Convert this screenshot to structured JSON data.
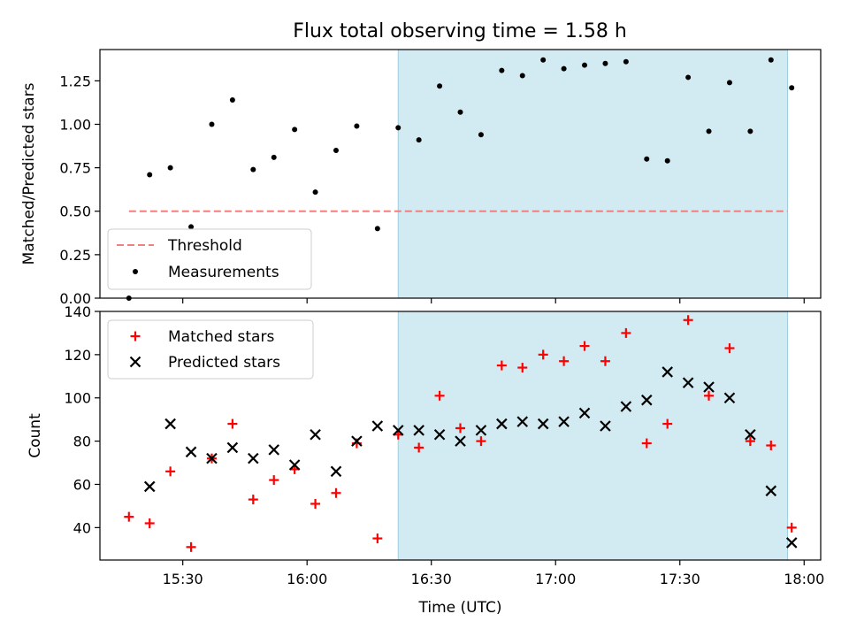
{
  "chart_data": {
    "title": "Flux total observing time = 1.58 h",
    "shaded_region": {
      "x_start": "16:22",
      "x_end": "17:56",
      "color": "#add8e6"
    },
    "x_axis": {
      "label": "Time (UTC)",
      "range": [
        "15:10",
        "18:04"
      ],
      "ticks": [
        "15:30",
        "16:00",
        "16:30",
        "17:00",
        "17:30",
        "18:00"
      ]
    },
    "panels": [
      {
        "type": "scatter",
        "ylabel": "Matched/Predicted stars",
        "ylim": [
          0,
          1.43
        ],
        "yticks": [
          "0.00",
          "0.25",
          "0.50",
          "0.75",
          "1.00",
          "1.25"
        ],
        "legend_position": "lower-left",
        "threshold": {
          "name": "Threshold",
          "value": 0.5,
          "x_start": "15:17",
          "x_end": "17:56",
          "color": "#f08080",
          "style": "dashed"
        },
        "series": [
          {
            "name": "Measurements",
            "color": "#000000",
            "marker": "dot",
            "x": [
              "15:17",
              "15:22",
              "15:27",
              "15:32",
              "15:37",
              "15:42",
              "15:47",
              "15:52",
              "15:57",
              "16:02",
              "16:07",
              "16:12",
              "16:17",
              "16:22",
              "16:27",
              "16:32",
              "16:37",
              "16:42",
              "16:47",
              "16:52",
              "16:57",
              "17:02",
              "17:07",
              "17:12",
              "17:17",
              "17:22",
              "17:27",
              "17:32",
              "17:37",
              "17:42",
              "17:47",
              "17:52",
              "17:57"
            ],
            "y": [
              0.0,
              0.71,
              0.75,
              0.41,
              1.0,
              1.14,
              0.74,
              0.81,
              0.97,
              0.61,
              0.85,
              0.99,
              0.4,
              0.98,
              0.91,
              1.22,
              1.07,
              0.94,
              1.31,
              1.28,
              1.37,
              1.32,
              1.34,
              1.35,
              1.36,
              0.8,
              0.79,
              1.27,
              0.96,
              1.24,
              0.96,
              1.37,
              1.21
            ]
          }
        ]
      },
      {
        "type": "scatter",
        "ylabel": "Count",
        "ylim": [
          25,
          140
        ],
        "yticks": [
          "40",
          "60",
          "80",
          "100",
          "120",
          "140"
        ],
        "legend_position": "upper-left",
        "series": [
          {
            "name": "Matched stars",
            "color": "#ff0000",
            "marker": "plus",
            "x": [
              "15:17",
              "15:22",
              "15:27",
              "15:32",
              "15:37",
              "15:42",
              "15:47",
              "15:52",
              "15:57",
              "16:02",
              "16:07",
              "16:12",
              "16:17",
              "16:22",
              "16:27",
              "16:32",
              "16:37",
              "16:42",
              "16:47",
              "16:52",
              "16:57",
              "17:02",
              "17:07",
              "17:12",
              "17:17",
              "17:22",
              "17:27",
              "17:32",
              "17:37",
              "17:42",
              "17:47",
              "17:52",
              "17:57"
            ],
            "y": [
              45,
              42,
              66,
              31,
              72,
              88,
              53,
              62,
              67,
              51,
              56,
              79,
              35,
              83,
              77,
              101,
              86,
              80,
              115,
              114,
              120,
              117,
              124,
              117,
              130,
              79,
              88,
              136,
              101,
              123,
              80,
              78,
              40
            ]
          },
          {
            "name": "Predicted stars",
            "color": "#000000",
            "marker": "x",
            "x": [
              "15:22",
              "15:27",
              "15:32",
              "15:37",
              "15:42",
              "15:47",
              "15:52",
              "15:57",
              "16:02",
              "16:07",
              "16:12",
              "16:17",
              "16:22",
              "16:27",
              "16:32",
              "16:37",
              "16:42",
              "16:47",
              "16:52",
              "16:57",
              "17:02",
              "17:07",
              "17:12",
              "17:17",
              "17:22",
              "17:27",
              "17:32",
              "17:37",
              "17:42",
              "17:47",
              "17:52",
              "17:57"
            ],
            "y": [
              59,
              88,
              75,
              72,
              77,
              72,
              76,
              69,
              83,
              66,
              80,
              87,
              85,
              85,
              83,
              80,
              85,
              88,
              89,
              88,
              89,
              93,
              87,
              96,
              99,
              112,
              107,
              105,
              100,
              83,
              57,
              33
            ]
          }
        ]
      }
    ]
  }
}
